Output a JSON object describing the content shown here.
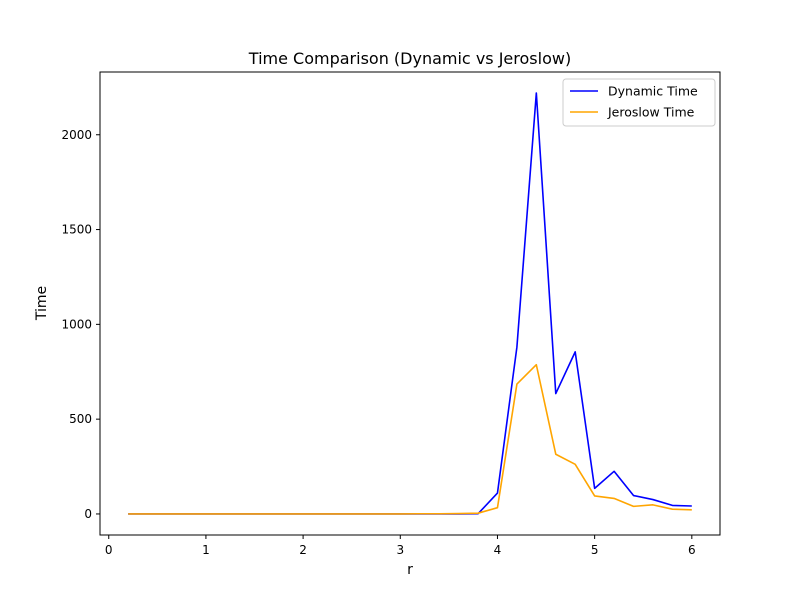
{
  "chart_data": {
    "type": "line",
    "title": "Time Comparison (Dynamic vs Jeroslow)",
    "xlabel": "r",
    "ylabel": "Time",
    "xlim": [
      -0.09,
      6.29
    ],
    "ylim": [
      -111,
      2331
    ],
    "x_ticks": [
      0,
      1,
      2,
      3,
      4,
      5,
      6
    ],
    "y_ticks": [
      0,
      500,
      1000,
      1500,
      2000
    ],
    "grid": false,
    "legend_position": "top-right",
    "x": [
      0.2,
      0.4,
      0.6,
      0.8,
      1.0,
      1.2,
      1.4,
      1.6,
      1.8,
      2.0,
      2.2,
      2.4,
      2.6,
      2.8,
      3.0,
      3.2,
      3.4,
      3.6,
      3.8,
      4.0,
      4.2,
      4.4,
      4.6,
      4.8,
      5.0,
      5.2,
      5.4,
      5.6,
      5.8,
      6.0
    ],
    "series": [
      {
        "name": "Dynamic Time",
        "color": "#0000ff",
        "values": [
          0,
          0,
          0,
          0,
          0,
          0,
          0,
          0,
          0,
          0,
          0,
          0,
          0,
          0,
          0,
          0,
          0,
          0,
          1,
          110,
          880,
          2220,
          635,
          855,
          135,
          225,
          97,
          76,
          45,
          42
        ]
      },
      {
        "name": "Jeroslow Time",
        "color": "#ffa500",
        "values": [
          0,
          0,
          0,
          0,
          0,
          0,
          0,
          0,
          0,
          0,
          0,
          0,
          0,
          0,
          0,
          1,
          1,
          2,
          4,
          33,
          685,
          787,
          315,
          262,
          95,
          82,
          40,
          48,
          25,
          22
        ]
      }
    ]
  }
}
